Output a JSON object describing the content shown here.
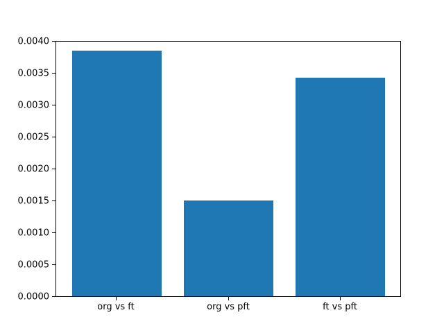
{
  "chart_data": {
    "type": "bar",
    "title": "",
    "xlabel": "",
    "ylabel": "",
    "categories": [
      "org vs ft",
      "org vs pft",
      "ft vs pft"
    ],
    "values": [
      0.00385,
      0.0015,
      0.00342
    ],
    "ylim": [
      0,
      0.004
    ],
    "yticks": [
      0.0,
      0.0005,
      0.001,
      0.0015,
      0.002,
      0.0025,
      0.003,
      0.0035,
      0.004
    ],
    "ytick_labels": [
      "0.0000",
      "0.0005",
      "0.0010",
      "0.0015",
      "0.0020",
      "0.0025",
      "0.0030",
      "0.0035",
      "0.0040"
    ],
    "bar_color": "#1f77b4",
    "bar_width_fraction": 0.8,
    "grid": false,
    "legend_position": "none",
    "background": "#ffffff",
    "spine_color": "#000000"
  }
}
